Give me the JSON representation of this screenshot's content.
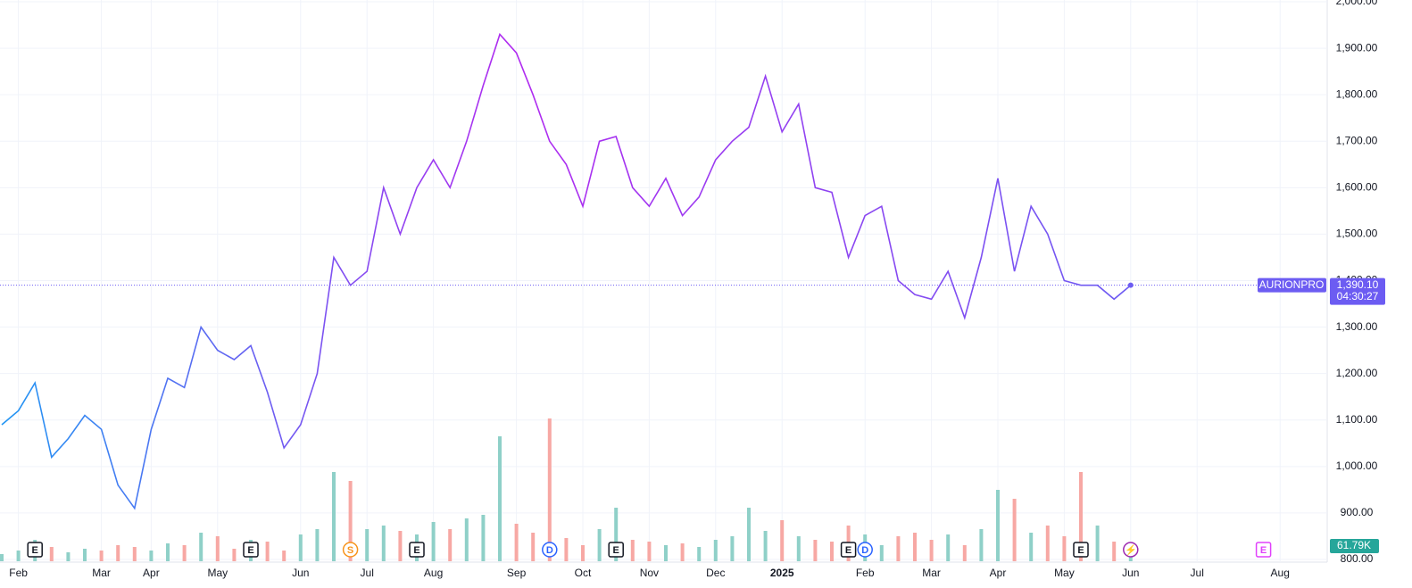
{
  "chart_data": {
    "type": "line",
    "symbol": "AURIONPRO",
    "categories": [
      null,
      "Feb",
      null,
      null,
      null,
      null,
      "Mar",
      null,
      null,
      "Apr",
      null,
      null,
      null,
      "May",
      null,
      null,
      null,
      null,
      "Jun",
      null,
      null,
      null,
      "Jul",
      null,
      null,
      null,
      "Aug",
      null,
      null,
      null,
      null,
      "Sep",
      null,
      null,
      null,
      "Oct",
      null,
      null,
      null,
      "Nov",
      null,
      null,
      null,
      "Dec",
      null,
      null,
      null,
      "2025",
      null,
      null,
      null,
      null,
      "Feb",
      null,
      null,
      null,
      "Mar",
      null,
      null,
      null,
      "Apr",
      null,
      null,
      null,
      "May",
      null,
      null,
      null,
      "Jun",
      null,
      null,
      null,
      "Jul",
      null,
      null,
      null,
      null,
      "Aug",
      null,
      null
    ],
    "series": [
      {
        "name": "AURIONPRO",
        "colors": [
          "#2196f3",
          "#b12bf0",
          "#6c5cf2"
        ],
        "values": [
          1090,
          1120,
          1180,
          1020,
          1060,
          1110,
          1080,
          960,
          910,
          1080,
          1190,
          1170,
          1300,
          1250,
          1230,
          1260,
          1160,
          1040,
          1090,
          1200,
          1450,
          1390,
          1420,
          1600,
          1500,
          1600,
          1660,
          1600,
          1700,
          1820,
          1930,
          1890,
          1800,
          1700,
          1650,
          1560,
          1700,
          1710,
          1600,
          1560,
          1620,
          1540,
          1580,
          1660,
          1700,
          1730,
          1840,
          1720,
          1780,
          1600,
          1590,
          1450,
          1540,
          1560,
          1400,
          1370,
          1360,
          1420,
          1320,
          1450,
          1620,
          1420,
          1560,
          1500,
          1400,
          1390,
          1390,
          1360,
          1390.1,
          null,
          null,
          null,
          null,
          null,
          null,
          null,
          null,
          null,
          null,
          null
        ]
      },
      {
        "name": "Volume",
        "up_color": "#8fd0c8",
        "down_color": "#f7a8a4",
        "values": [
          40,
          60,
          120,
          80,
          50,
          70,
          60,
          90,
          80,
          60,
          100,
          90,
          160,
          140,
          70,
          120,
          110,
          60,
          150,
          180,
          500,
          450,
          180,
          200,
          170,
          150,
          220,
          180,
          240,
          260,
          700,
          210,
          160,
          800,
          130,
          90,
          180,
          300,
          120,
          110,
          90,
          100,
          80,
          120,
          140,
          300,
          170,
          230,
          140,
          120,
          110,
          200,
          150,
          90,
          140,
          160,
          120,
          150,
          90,
          180,
          400,
          350,
          160,
          200,
          140,
          500,
          200,
          110,
          61.79,
          null,
          null,
          null,
          null,
          null,
          null,
          null,
          null,
          null,
          null,
          null
        ]
      }
    ],
    "ylim": [
      800,
      2000
    ],
    "yticks": [
      {
        "value": 800,
        "label": "800.00"
      },
      {
        "value": 900,
        "label": "900.00"
      },
      {
        "value": 1000,
        "label": "1,000.00"
      },
      {
        "value": 1100,
        "label": "1,100.00"
      },
      {
        "value": 1200,
        "label": "1,200.00"
      },
      {
        "value": 1300,
        "label": "1,300.00"
      },
      {
        "value": 1400,
        "label": "1,400.00"
      },
      {
        "value": 1500,
        "label": "1,500.00"
      },
      {
        "value": 1600,
        "label": "1,600.00"
      },
      {
        "value": 1700,
        "label": "1,700.00"
      },
      {
        "value": 1800,
        "label": "1,800.00"
      },
      {
        "value": 1900,
        "label": "1,900.00"
      },
      {
        "value": 2000,
        "label": "2,000.00"
      }
    ],
    "price_label": {
      "value": 1390.1,
      "label": "1,390.10"
    },
    "countdown": "04:30:27",
    "volume_label": {
      "value": 61.79,
      "label": "61.79K"
    },
    "events": [
      {
        "label": "E",
        "x": 2,
        "color": "#131722"
      },
      {
        "label": "E",
        "x": 15,
        "color": "#131722"
      },
      {
        "label": "S",
        "x": 21,
        "color": "#f7931a"
      },
      {
        "label": "E",
        "x": 25,
        "color": "#131722"
      },
      {
        "label": "D",
        "x": 33,
        "color": "#2962ff"
      },
      {
        "label": "E",
        "x": 37,
        "color": "#131722"
      },
      {
        "label": "E",
        "x": 51,
        "color": "#131722"
      },
      {
        "label": "D",
        "x": 52,
        "color": "#2962ff"
      },
      {
        "label": "E",
        "x": 65,
        "color": "#131722"
      },
      {
        "label": "⚡",
        "x": 68,
        "color": "#9c27b0"
      },
      {
        "label": "E",
        "x": 76,
        "color": "#e040fb"
      }
    ],
    "grid": true
  }
}
